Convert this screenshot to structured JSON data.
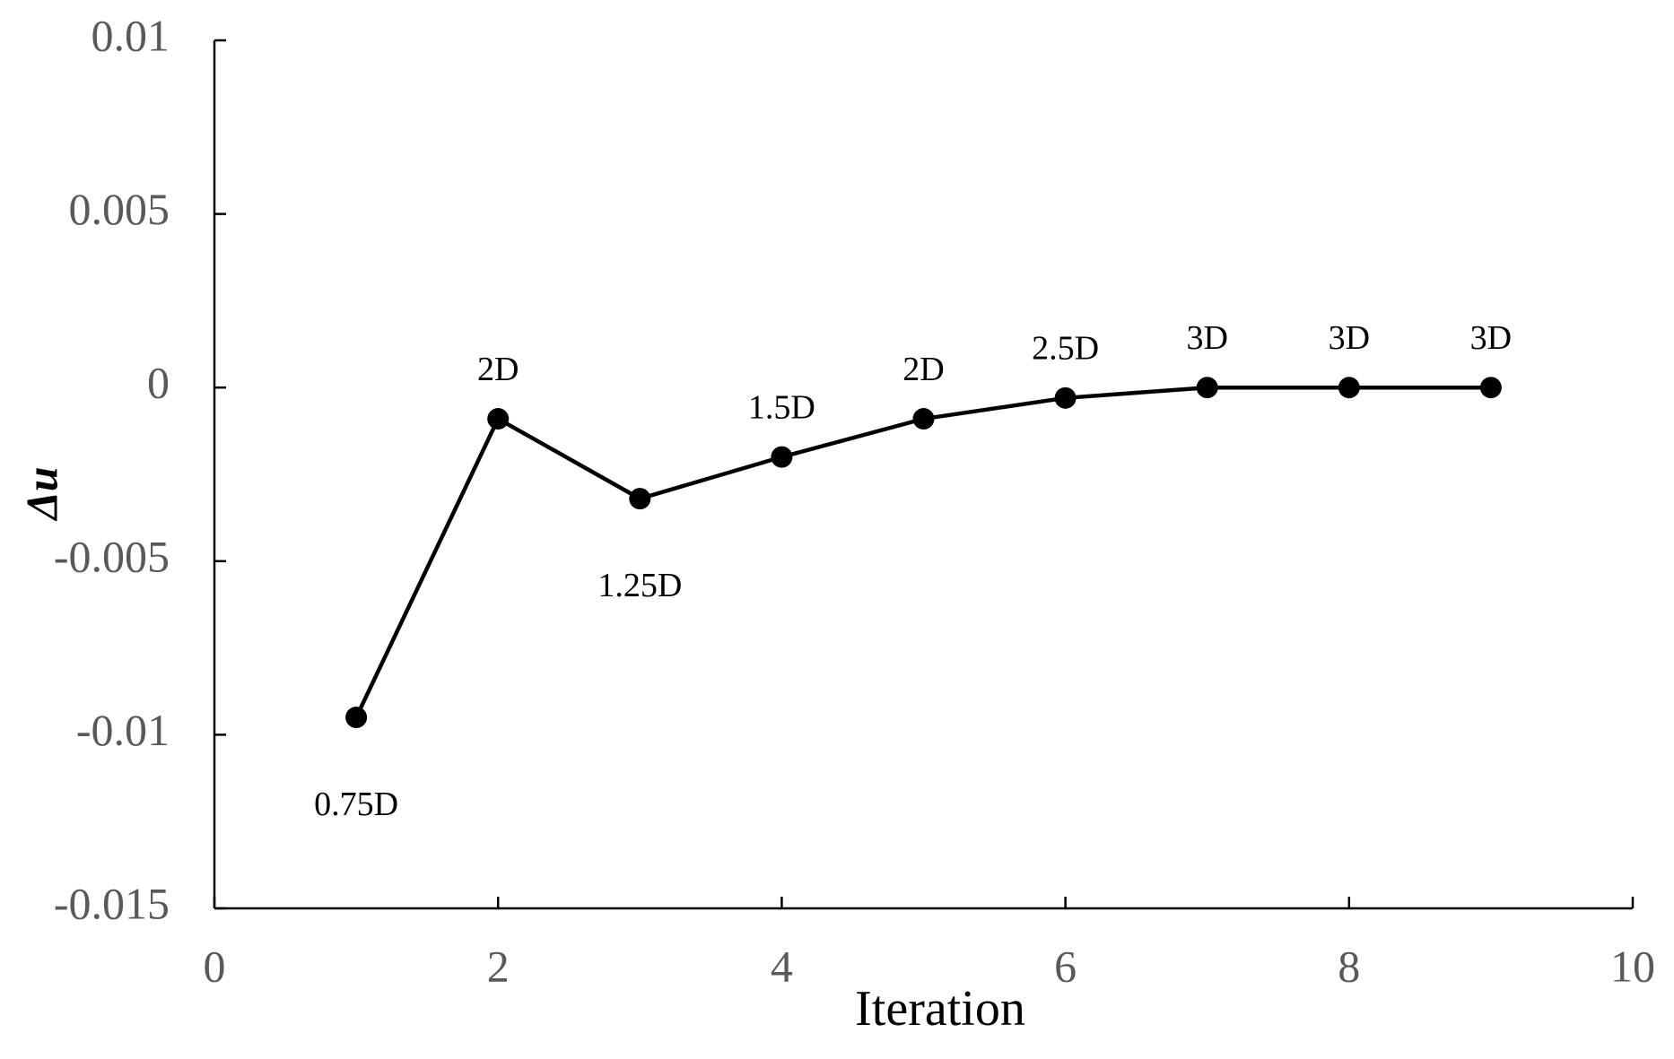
{
  "chart_data": {
    "type": "line",
    "x_label": "Iteration",
    "y_label": "Δu",
    "x": [
      1,
      2,
      3,
      4,
      5,
      6,
      7,
      8,
      9
    ],
    "series": [
      {
        "name": "Δu",
        "color": "#000000",
        "values": [
          -0.0095,
          -0.0009,
          -0.0032,
          -0.002,
          -0.0009,
          -0.0003,
          0,
          0,
          0
        ]
      }
    ],
    "point_labels": [
      "0.75D",
      "2D",
      "1.25D",
      "1.5D",
      "2D",
      "2.5D",
      "3D",
      "3D",
      "3D"
    ],
    "xlim": [
      0,
      10
    ],
    "xticks": [
      0,
      2,
      4,
      6,
      8,
      10
    ],
    "ylim": [
      -0.015,
      0.01
    ],
    "yticks": [
      -0.015,
      -0.01,
      -0.005,
      0,
      0.005,
      0.01
    ],
    "grid": false
  }
}
